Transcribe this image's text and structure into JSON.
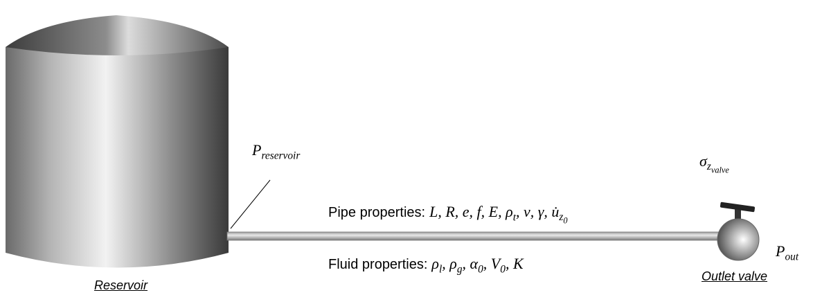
{
  "reservoir": {
    "label": "Reservoir",
    "pressure": {
      "symbol": "P",
      "subscript": "reservoir"
    }
  },
  "valve": {
    "label": "Outlet valve",
    "pressure": {
      "symbol": "P",
      "subscript": "out"
    },
    "stress": {
      "symbol": "σ",
      "subscript": "z",
      "subsubscript": "valve"
    }
  },
  "separator": ",",
  "pipe": {
    "label": "Pipe properties:",
    "symbols": [
      {
        "symbol": "L"
      },
      {
        "symbol": "R"
      },
      {
        "symbol": "e"
      },
      {
        "symbol": "f"
      },
      {
        "symbol": "E"
      },
      {
        "symbol": "ρ",
        "subscript": "t"
      },
      {
        "symbol": "ν"
      },
      {
        "symbol": "γ"
      },
      {
        "symbol": "u̇",
        "subscript": "z",
        "subsubscript": "0"
      }
    ]
  },
  "fluid": {
    "label": "Fluid properties:",
    "symbols": [
      {
        "symbol": "ρ",
        "subscript": "l"
      },
      {
        "symbol": "ρ",
        "subscript": "g"
      },
      {
        "symbol": "α",
        "subscript": "0"
      },
      {
        "symbol": "V",
        "subscript": "0"
      },
      {
        "symbol": "K"
      }
    ]
  }
}
